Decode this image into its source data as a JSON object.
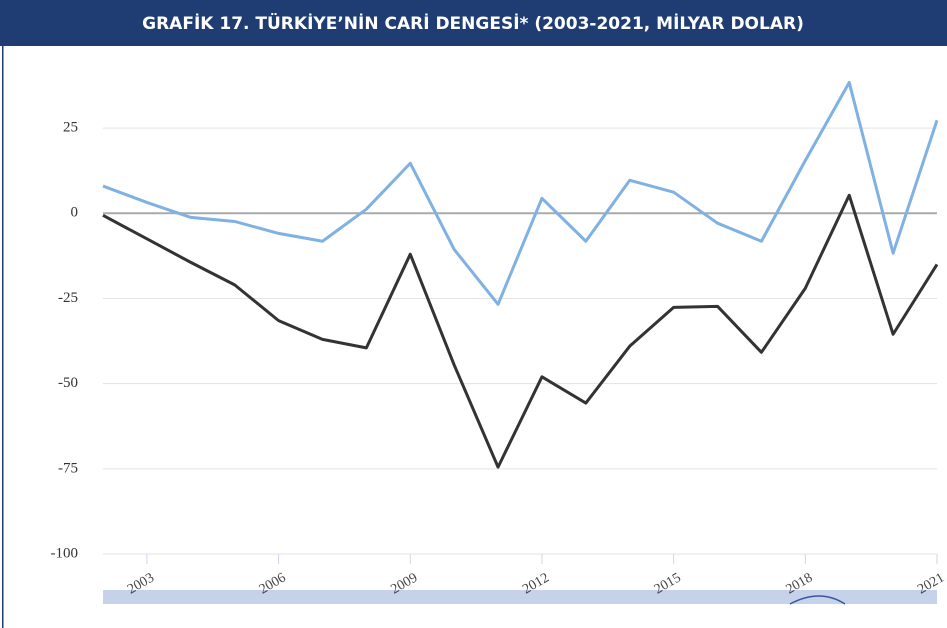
{
  "chart_data": {
    "type": "line",
    "title": "GRAFİK 17. TÜRKİYE’NİN CARİ DENGESİ* (2003-2021, MİLYAR DOLAR)",
    "x": [
      2002,
      2003,
      2004,
      2005,
      2006,
      2007,
      2008,
      2009,
      2010,
      2011,
      2012,
      2013,
      2014,
      2015,
      2016,
      2017,
      2018,
      2019,
      2020,
      2021
    ],
    "series": [
      {
        "color": "#7fb1e3",
        "values": [
          8,
          3.2,
          -1.2,
          -2.4,
          -5.9,
          -8.2,
          1.2,
          14.7,
          -10.6,
          -26.7,
          4.4,
          -8.2,
          9.7,
          6.2,
          -2.9,
          -8.2,
          15.5,
          38.4,
          -11.7,
          27.3
        ]
      },
      {
        "color": "#333333",
        "values": [
          -0.6,
          -7.5,
          -14.4,
          -21,
          -31.5,
          -37,
          -39.5,
          -12,
          -44.5,
          -74.5,
          -48,
          -55.7,
          -39,
          -27.6,
          -27.3,
          -40.8,
          -22,
          5.3,
          -35.5,
          -15
        ]
      }
    ],
    "xlim": [
      2002,
      2021
    ],
    "xticks": [
      2003,
      2006,
      2009,
      2012,
      2015,
      2018,
      2021
    ],
    "ylim": [
      -100,
      45
    ],
    "yticks": [
      -100,
      -75,
      -50,
      -25,
      0,
      25
    ],
    "grid": true
  }
}
